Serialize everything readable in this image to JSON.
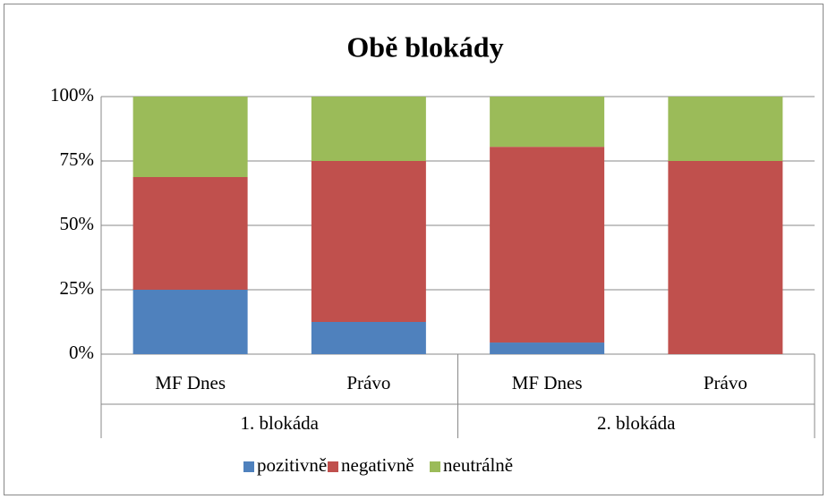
{
  "chart_data": {
    "type": "stacked_bar",
    "title": "Obě blokády",
    "categories": [
      "MF Dnes",
      "Právo",
      "MF Dnes",
      "Právo"
    ],
    "groups": [
      "1. blokáda",
      "2. blokáda"
    ],
    "series": [
      {
        "name": "pozitivně",
        "color": "#4f81bd",
        "values": [
          25,
          12.5,
          4.5,
          0
        ]
      },
      {
        "name": "negativně",
        "color": "#c0504d",
        "values": [
          43.75,
          62.5,
          76,
          75
        ]
      },
      {
        "name": "neutrálně",
        "color": "#9bbb59",
        "values": [
          31.25,
          25,
          19.5,
          25
        ]
      }
    ],
    "ylim": [
      0,
      100
    ],
    "yticks": [
      {
        "value": 0,
        "label": "0%"
      },
      {
        "value": 25,
        "label": "25%"
      },
      {
        "value": 50,
        "label": "50%"
      },
      {
        "value": 75,
        "label": "75%"
      },
      {
        "value": 100,
        "label": "100%"
      }
    ],
    "grid": true,
    "legend": "bottom"
  }
}
